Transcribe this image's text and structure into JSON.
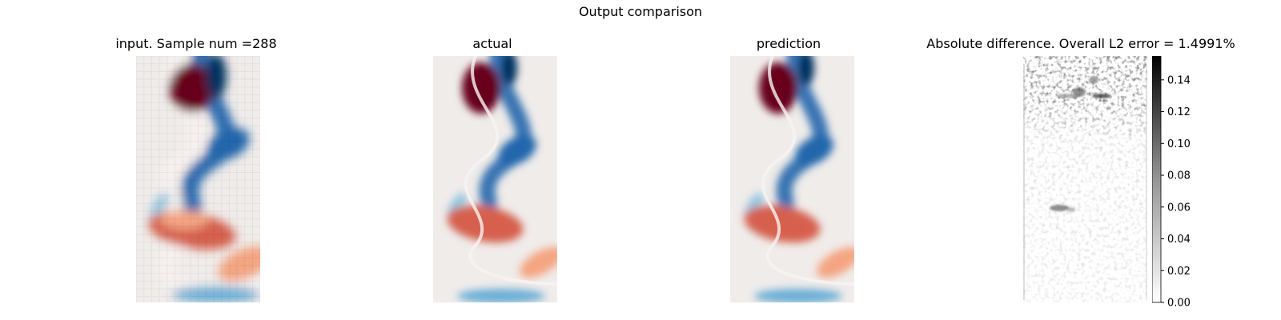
{
  "figure": {
    "suptitle": "Output comparison"
  },
  "panels": [
    {
      "title": "input. Sample num =288"
    },
    {
      "title": "actual"
    },
    {
      "title": "prediction"
    },
    {
      "title": "Absolute difference. Overall L2 error = 1.4991%"
    }
  ],
  "colormaps": {
    "field": "diverging red-white-blue",
    "difference": "greys"
  },
  "colors": {
    "red_extreme": "#67001f",
    "blue_extreme": "#053061",
    "neutral": "#f0ecea"
  },
  "chart_data": {
    "type": "heatmap",
    "title": "Output comparison",
    "panels": [
      "input. Sample num =288",
      "actual",
      "prediction",
      "Absolute difference. Overall L2 error = 1.4991%"
    ],
    "input_grid": "coarse (approx. 16 x 32 cells)",
    "colorbar": {
      "panel": "Absolute difference. Overall L2 error = 1.4991%",
      "ticks": [
        "0.00",
        "0.02",
        "0.04",
        "0.06",
        "0.08",
        "0.10",
        "0.12",
        "0.14"
      ],
      "range": [
        0,
        0.155
      ],
      "cmap": "greys"
    }
  }
}
